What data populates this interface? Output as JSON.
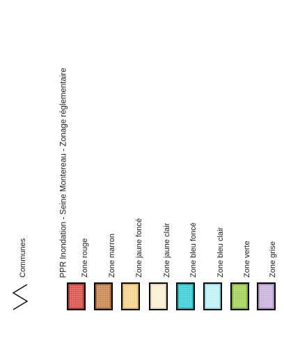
{
  "legend": {
    "communes_label": "Communes",
    "layer_title": "PPR Inondation - Seine Montereau - Zonage réglementaire",
    "zones": [
      {
        "label": "Zone rouge",
        "color": "#d9534b",
        "border": "#b43c34"
      },
      {
        "label": "Zone marron",
        "color": "#c8874f",
        "border": "#a0673a"
      },
      {
        "label": "Zone jaune foncé",
        "color": "#f3d38e",
        "border": "#d9b66a"
      },
      {
        "label": "Zone jaune clair",
        "color": "#fbefd3",
        "border": "#e6d6b0"
      },
      {
        "label": "Zone bleu foncé",
        "color": "#3fcdd6",
        "border": "#2aaab2"
      },
      {
        "label": "Zone bleu clair",
        "color": "#bff2f4",
        "border": "#8fdbe0"
      },
      {
        "label": "Zone verte",
        "color": "#a4d35a",
        "border": "#7fb23a"
      },
      {
        "label": "Zone grise",
        "color": "#c9b2dc",
        "border": "#a98fc0"
      }
    ]
  }
}
